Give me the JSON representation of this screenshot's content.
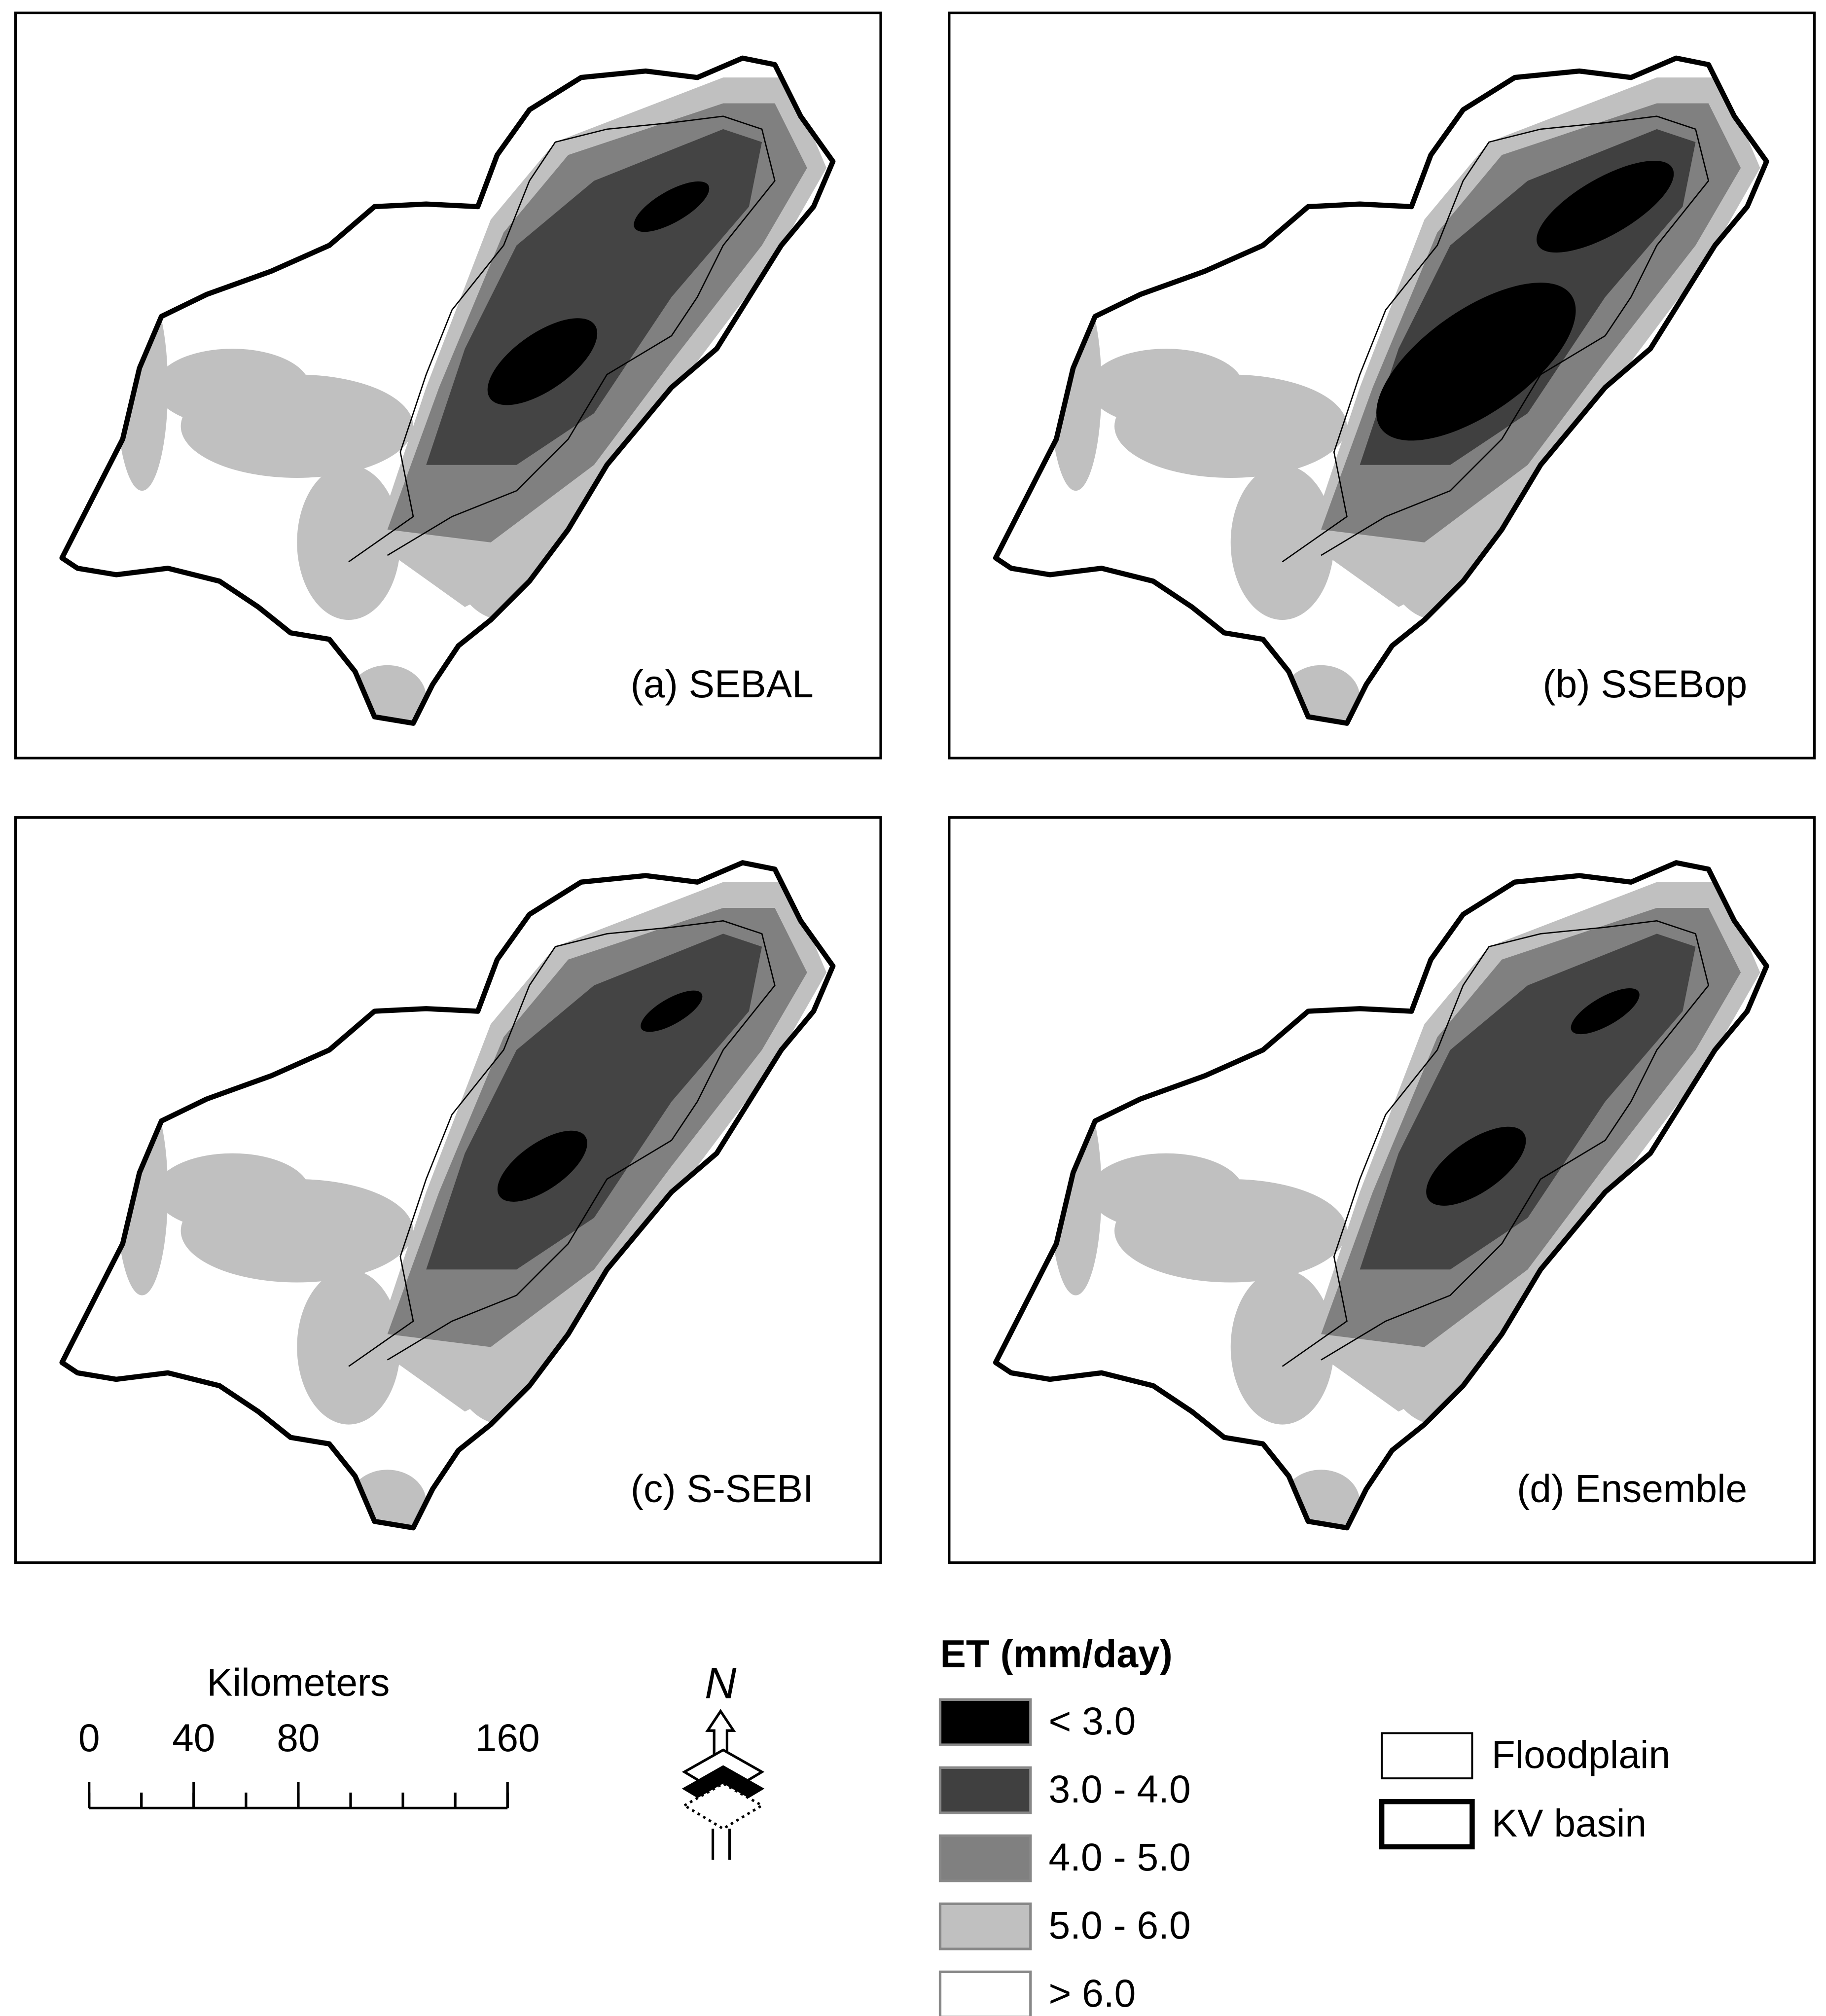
{
  "panels": [
    {
      "label": "(a) SEBAL"
    },
    {
      "label": "(b) SSEBop"
    },
    {
      "label": "(c) S-SEBI"
    },
    {
      "label": "(d) Ensemble"
    }
  ],
  "scale_bar": {
    "title": "Kilometers",
    "range": [
      0,
      160
    ],
    "ticks": [
      0,
      40,
      80,
      160
    ]
  },
  "north_arrow": {
    "label": "N"
  },
  "legend": {
    "title": "ET (mm/day)",
    "classes": [
      {
        "label": "< 3.0",
        "color": "#000000"
      },
      {
        "label": "3.0 - 4.0",
        "color": "#404040"
      },
      {
        "label": "4.0 - 5.0",
        "color": "#808080"
      },
      {
        "label": "5.0 - 6.0",
        "color": "#c0c0c0"
      },
      {
        "label": "> 6.0",
        "color": "#ffffff"
      }
    ],
    "features": [
      {
        "label": "Floodplain"
      },
      {
        "label": "KV basin"
      }
    ]
  }
}
